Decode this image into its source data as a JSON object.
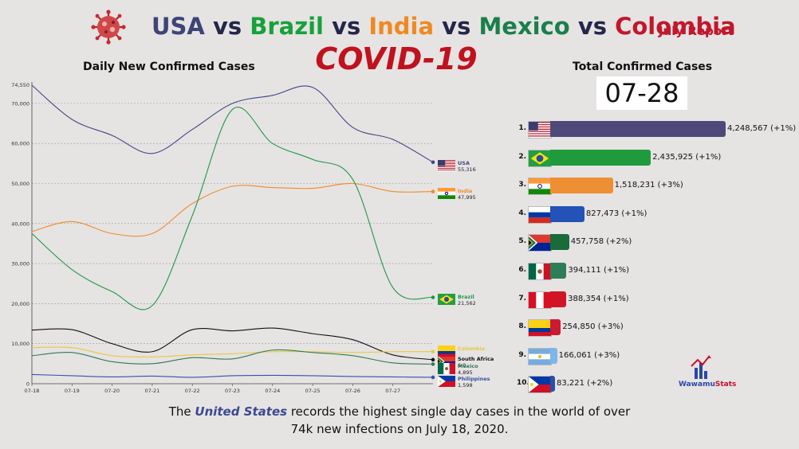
{
  "header": {
    "title_parts": [
      {
        "text": "USA",
        "color": "#3d4478"
      },
      {
        "text": " vs ",
        "color": "#24264a"
      },
      {
        "text": "Brazil",
        "color": "#17a13a"
      },
      {
        "text": " vs ",
        "color": "#24264a"
      },
      {
        "text": "India",
        "color": "#ee8a21"
      },
      {
        "text": " vs ",
        "color": "#24264a"
      },
      {
        "text": "Mexico",
        "color": "#1a7f4b"
      },
      {
        "text": " vs ",
        "color": "#24264a"
      },
      {
        "text": "Colombia",
        "color": "#c0182c"
      }
    ],
    "report_tag": "July Report",
    "subtitle": "COVID-19"
  },
  "chart_data": {
    "type": "line",
    "title": "Daily New Confirmed Cases",
    "x": [
      "07-18",
      "07-19",
      "07-20",
      "07-21",
      "07-22",
      "07-23",
      "07-24",
      "07-25",
      "07-26",
      "07-27",
      "07-28"
    ],
    "ylim": [
      0,
      74550
    ],
    "yticks": [
      0,
      10000,
      20000,
      30000,
      40000,
      50000,
      60000,
      70000
    ],
    "ytick_labels": [
      "0",
      "10,000",
      "20,000",
      "30,000",
      "40,000",
      "50,000",
      "60,000",
      "70,000"
    ],
    "y_top_label": "74,550",
    "grid": true,
    "series": [
      {
        "name": "USA",
        "color": "#414684",
        "values": [
          74550,
          66000,
          62000,
          57500,
          63500,
          70000,
          72000,
          74000,
          64000,
          61000,
          55316
        ],
        "end_label": "55,316",
        "flag": "usa"
      },
      {
        "name": "India",
        "color": "#ef8c2a",
        "values": [
          38000,
          40500,
          37500,
          37500,
          45000,
          49300,
          49000,
          48800,
          50000,
          48000,
          47995
        ],
        "end_label": "47,995",
        "flag": "india"
      },
      {
        "name": "Brazil",
        "color": "#1e9a47",
        "values": [
          37500,
          28500,
          23000,
          19500,
          42000,
          68500,
          60000,
          56000,
          51000,
          24000,
          21562
        ],
        "end_label": "21,562",
        "flag": "brazil"
      },
      {
        "name": "South Africa",
        "color": "#111111",
        "values": [
          13400,
          13500,
          10000,
          8000,
          13500,
          13200,
          13900,
          12500,
          11000,
          7200,
          6000
        ],
        "end_label": "6,0..",
        "flag": "southafrica"
      },
      {
        "name": "Colombia",
        "color": "#e9c83f",
        "values": [
          9000,
          9000,
          7000,
          6700,
          7200,
          7500,
          8000,
          8000,
          7800,
          8000,
          8000
        ],
        "end_label": "",
        "flag": "colombia"
      },
      {
        "name": "Mexico",
        "color": "#2f7a54",
        "values": [
          7000,
          7800,
          5500,
          5000,
          6500,
          6200,
          8400,
          7800,
          7000,
          5200,
          4895
        ],
        "end_label": "4,895",
        "flag": "mexico"
      },
      {
        "name": "Philippines",
        "color": "#3252a7",
        "values": [
          2300,
          2000,
          1700,
          1900,
          1600,
          2000,
          2100,
          2000,
          1800,
          1700,
          1598
        ],
        "end_label": "1,598",
        "flag": "philippines"
      }
    ]
  },
  "totals": {
    "title": "Total Confirmed Cases",
    "date": "07-28",
    "max": 4248567,
    "items": [
      {
        "rank": "1.",
        "flag": "usa",
        "value": 4248567,
        "label": "4,248,567 (+1%)",
        "color": "#4d4a7a"
      },
      {
        "rank": "2.",
        "flag": "brazil",
        "value": 2435925,
        "label": "2,435,925 (+1%)",
        "color": "#1f9a3c"
      },
      {
        "rank": "3.",
        "flag": "india",
        "value": 1518231,
        "label": "1,518,231 (+3%)",
        "color": "#ee8f33"
      },
      {
        "rank": "4.",
        "flag": "russia",
        "value": 827473,
        "label": "827,473 (+1%)",
        "color": "#2452b6"
      },
      {
        "rank": "5.",
        "flag": "southafrica",
        "value": 457758,
        "label": "457,758 (+2%)",
        "color": "#1b6a3b"
      },
      {
        "rank": "6.",
        "flag": "mexico",
        "value": 394111,
        "label": "394,111 (+1%)",
        "color": "#2e7d58"
      },
      {
        "rank": "7.",
        "flag": "peru",
        "value": 388354,
        "label": "388,354 (+1%)",
        "color": "#d01626"
      },
      {
        "rank": "8.",
        "flag": "colombia",
        "value": 254850,
        "label": "254,850 (+3%)",
        "color": "#cc1a30"
      },
      {
        "rank": "9.",
        "flag": "argentina",
        "value": 166061,
        "label": "166,061 (+3%)",
        "color": "#7eb6e6"
      },
      {
        "rank": "10.",
        "flag": "philippines",
        "value": 83221,
        "label": "83,221 (+2%)",
        "color": "#2e4ea6"
      }
    ]
  },
  "footer": {
    "line1_pre": "The ",
    "line1_highlight": "United States",
    "line1_post": " records the highest single day cases in the world of over",
    "line2": "74k new infections on July 18, 2020."
  },
  "brand": {
    "part1": "Wawamu",
    "part2": "Stats"
  },
  "icons": {
    "virus": "virus-icon",
    "brand": "wawamu-chart-icon"
  }
}
